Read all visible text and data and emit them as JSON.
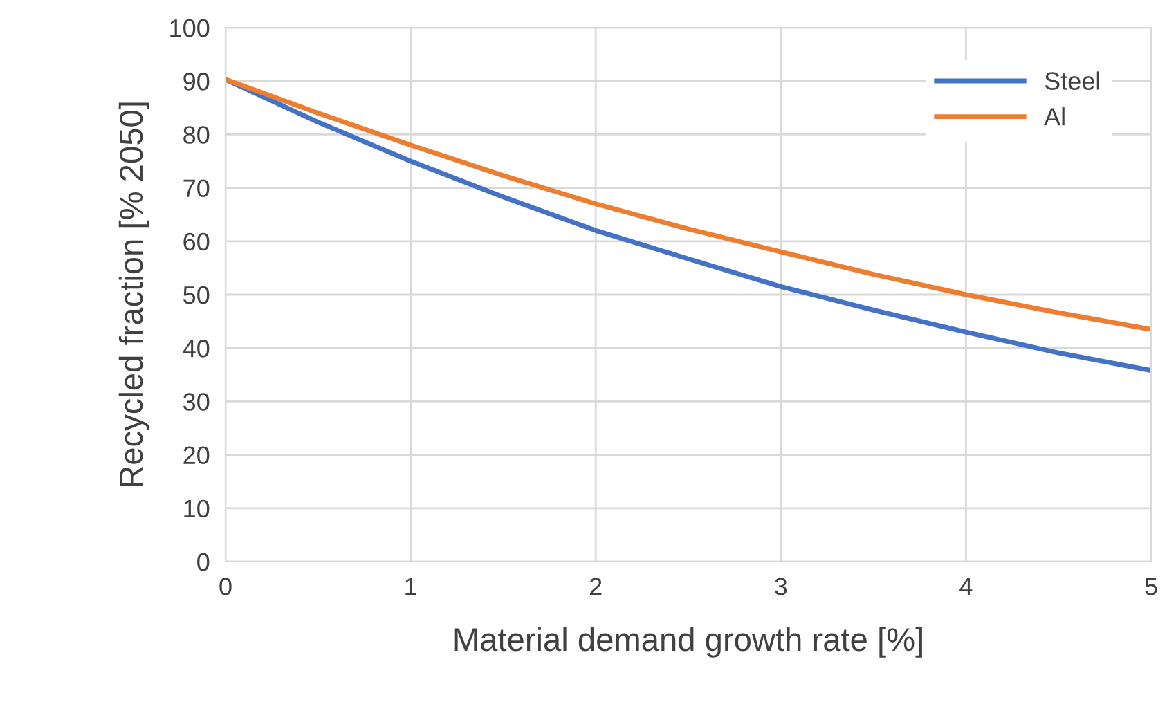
{
  "chart_data": {
    "type": "line",
    "xlabel": "Material demand growth rate [%]",
    "ylabel": "Recycled fraction [% 2050]",
    "x": [
      0,
      0.5,
      1,
      1.5,
      2,
      2.5,
      3,
      3.5,
      4,
      4.5,
      5
    ],
    "series": [
      {
        "name": "Steel",
        "color": "#4472c4",
        "values": [
          90.3,
          82.3,
          75,
          68.3,
          62,
          56.7,
          51.5,
          47.1,
          43,
          39.1,
          35.8
        ]
      },
      {
        "name": "Al",
        "color": "#ed7d31",
        "values": [
          90.3,
          84,
          78,
          72.3,
          67,
          62.3,
          58,
          53.8,
          50,
          46.6,
          43.5
        ]
      }
    ],
    "xlim": [
      0,
      5
    ],
    "xticks": [
      0,
      1,
      2,
      3,
      4,
      5
    ],
    "ylim": [
      0,
      100
    ],
    "yticks": [
      0,
      10,
      20,
      30,
      40,
      50,
      60,
      70,
      80,
      90,
      100
    ],
    "grid": true,
    "legend": "top right",
    "marker": "none",
    "line_style": "solid"
  }
}
